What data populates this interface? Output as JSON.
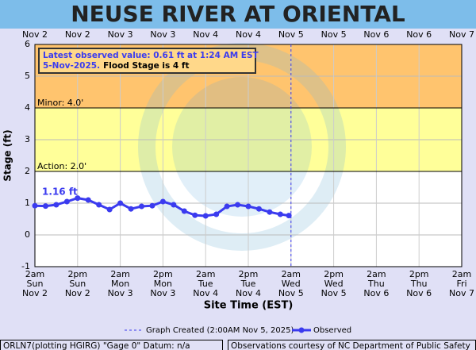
{
  "chart_data": {
    "type": "line",
    "title": "NEUSE RIVER AT ORIENTAL",
    "xlabel": "Site Time (EST)",
    "ylabel": "Stage (ft)",
    "xlim": [
      0,
      120
    ],
    "xticks": [
      {
        "value": 0,
        "label": "2am\nSun\nNov 2"
      },
      {
        "value": 12,
        "label": "2pm\nSun\nNov 2"
      },
      {
        "value": 24,
        "label": "2am\nMon\nNov 3"
      },
      {
        "value": 36,
        "label": "2pm\nMon\nNov 3"
      },
      {
        "value": 48,
        "label": "2am\nTue\nNov 4"
      },
      {
        "value": 60,
        "label": "2pm\nTue\nNov 4"
      },
      {
        "value": 72,
        "label": "2am\nWed\nNov 5"
      },
      {
        "value": 84,
        "label": "2pm\nWed\nNov 5"
      },
      {
        "value": 96,
        "label": "2am\nThu\nNov 6"
      },
      {
        "value": 108,
        "label": "2pm\nThu\nNov 6"
      },
      {
        "value": 120,
        "label": "2am\nFri\nNov 7"
      }
    ],
    "top_labels": [
      "Nov 2",
      "Nov 2",
      "Nov 3",
      "Nov 3",
      "Nov 4",
      "Nov 4",
      "Nov 5",
      "Nov 5",
      "Nov 6",
      "Nov 6",
      "Nov 7"
    ],
    "ylim": [
      -1,
      6
    ],
    "yticks": [
      -1,
      0,
      1,
      2,
      3,
      4,
      5,
      6
    ],
    "thresholds": [
      {
        "label": "Action: 2.0'",
        "value": 2,
        "color": "#ffff99"
      },
      {
        "label": "Minor: 4.0'",
        "value": 4,
        "color": "#ffc46e"
      }
    ],
    "x": [
      0,
      3,
      6,
      9,
      12,
      15,
      18,
      21,
      24,
      27,
      30,
      33,
      36,
      39,
      42,
      45,
      48,
      51,
      54,
      57,
      60,
      63,
      66,
      69,
      71.4
    ],
    "series": [
      {
        "name": "Observed",
        "color": "#3b3bef",
        "values": [
          0.92,
          0.91,
          0.95,
          1.05,
          1.16,
          1.1,
          0.95,
          0.8,
          1.0,
          0.82,
          0.9,
          0.92,
          1.05,
          0.95,
          0.75,
          0.62,
          0.6,
          0.65,
          0.9,
          0.95,
          0.9,
          0.82,
          0.72,
          0.65,
          0.61
        ]
      }
    ],
    "peak_label": {
      "x": 12,
      "text": "1.16 ft"
    },
    "created": {
      "x": 72,
      "name": "Graph Created (2:00AM Nov 5, 2025)"
    },
    "latest_note": [
      "Latest observed value: 0.61 ft at 1:24 AM EST",
      "5-Nov-2025."
    ],
    "flood_note": "Flood Stage is 4 ft",
    "footer_left": "ORLN7(plotting HGIRG) \"Gage 0\" Datum: n/a",
    "footer_right": "Observations courtesy of NC Department of Public Safety"
  }
}
